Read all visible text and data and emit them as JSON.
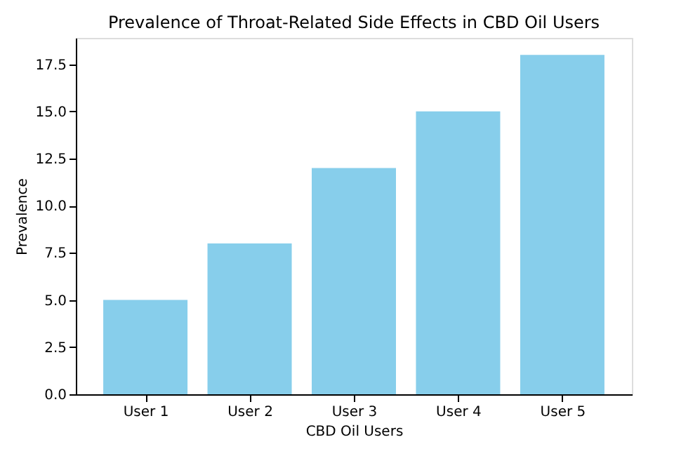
{
  "chart_data": {
    "type": "bar",
    "title": "Prevalence of Throat-Related Side Effects in CBD Oil Users",
    "xlabel": "CBD Oil Users",
    "ylabel": "Prevalence",
    "categories": [
      "User 1",
      "User 2",
      "User 3",
      "User 4",
      "User 5"
    ],
    "values": [
      5,
      8,
      12,
      15,
      18
    ],
    "color": "#87ceeb",
    "ylim": [
      0,
      18.9
    ],
    "yticks": [
      {
        "value": 0,
        "label": "0.0"
      },
      2.5,
      {
        "value": 5,
        "label": "5.0"
      },
      7.5,
      {
        "value": 10,
        "label": "10.0"
      },
      12.5,
      {
        "value": 15,
        "label": "15.0"
      },
      17.5
    ],
    "grid": false
  }
}
